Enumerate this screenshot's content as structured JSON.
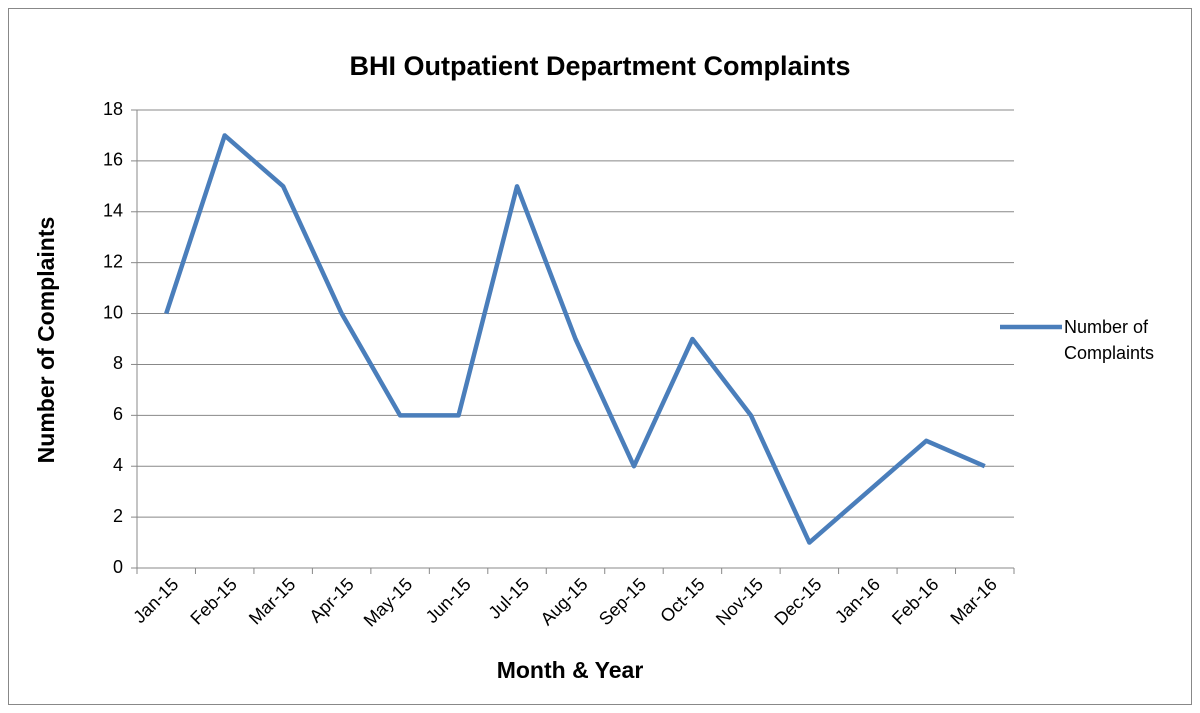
{
  "chart_data": {
    "type": "line",
    "title": "BHI Outpatient Department Complaints",
    "x_label": "Month & Year",
    "y_label": "Number of Complaints",
    "categories": [
      "Jan-15",
      "Feb-15",
      "Mar-15",
      "Apr-15",
      "May-15",
      "Jun-15",
      "Jul-15",
      "Aug-15",
      "Sep-15",
      "Oct-15",
      "Nov-15",
      "Dec-15",
      "Jan-16",
      "Feb-16",
      "Mar-16"
    ],
    "series": [
      {
        "name": "Number of Complaints",
        "color": "#4a7ebb",
        "values": [
          10,
          17,
          15,
          10,
          6,
          6,
          15,
          9,
          4,
          9,
          6,
          1,
          3,
          5,
          4
        ]
      }
    ],
    "ylim": [
      0,
      18
    ],
    "yticks": [
      0,
      2,
      4,
      6,
      8,
      10,
      12,
      14,
      16,
      18
    ],
    "grid": true,
    "legend": "right"
  }
}
